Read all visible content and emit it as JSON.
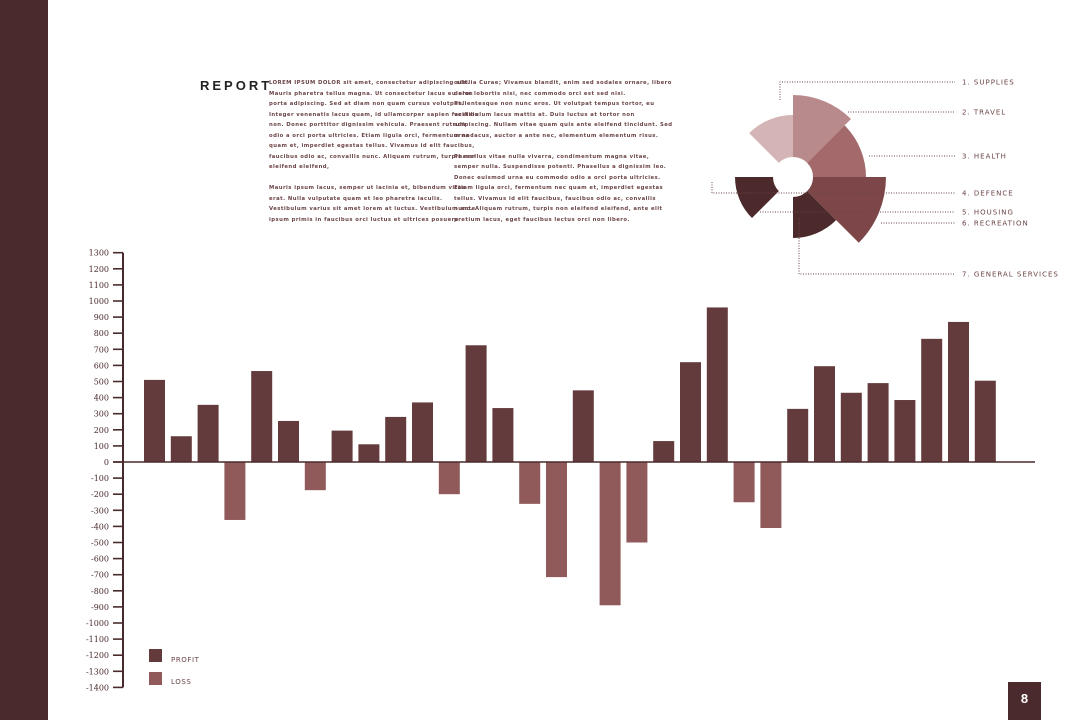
{
  "title": "REPORT",
  "page_number": "8",
  "body_text": {
    "column1": [
      [
        "LOREM IPSUM DOLOR sit amet, consectetur adipiscing elit.",
        "Mauris pharetra tellus magna. Ut consectetur lacus eu eros",
        "porta adipiscing. Sed at diam non quam cursus volutpat.",
        "Integer venenatis lacus quam, id ullamcorper sapien facilisis",
        "non. Donec porttitor dignissim vehicula. Praesent rutrum",
        "odio a orci porta ultricies. Etiam ligula orci, fermentum nec",
        "quam et, imperdiet egestas tellus. Vivamus id elit faucibus,",
        "faucibus odio ac, convallis nunc. Aliquam rutrum, turpis non",
        "eleifend eleifend,"
      ],
      [
        "Mauris ipsum lacus, semper ut lacinia et, bibendum vitae",
        "erat. Nulla vulputate quam et leo pharetra iaculis.",
        "Vestibulum varius sit amet lorem at luctus. Vestibulum ante",
        "ipsum primis in faucibus orci luctus et ultrices posuere"
      ]
    ],
    "column2": [
      [
        "cubilia Curae; Vivamus blandit, enim sed sodales ornare, libero",
        "dolor lobortis nisi, nec commodo orci est sed nisi.",
        "Pellentesque non nunc eros. Ut volutpat tempus tortor, eu",
        "vestibulum lacus mattis at. Duis luctus at tortor non",
        "adipiscing. Nullam vitae quam quis ante eleifend tincidunt. Sed",
        "urna lacus, auctor a ante nec, elementum elementum risus."
      ],
      [
        "Phasellus vitae nulla viverra, condimentum magna vitae,",
        "semper nulla. Suspendisse potenti. Phasellus a dignissim leo.",
        "Donec euismod urna eu commodo odio a orci porta ultricies.",
        "Etiam ligula orci, fermentum nec quam et, imperdiet egestas",
        "tellus. Vivamus id elit faucibus, faucibus odio ac, convallis",
        "nunc. Aliquam rutrum, turpis non eleifend eleifend, ante elit",
        "pretium lacus, eget faucibus lectus orci non libero."
      ]
    ]
  },
  "colors": {
    "sidebar": "#4a2a2c",
    "profit": "#633b3d",
    "loss": "#905a5b",
    "axis": "#4a2a2c"
  },
  "chart_data": [
    {
      "type": "polar-area",
      "categories": [
        "1. SUPPLIES",
        "2. TRAVEL",
        "3. HEALTH",
        "4. DEFENCE",
        "5. HOUSING",
        "6. RECREATION",
        "7. GENERAL SERVICES"
      ],
      "values": [
        42,
        62,
        53,
        38,
        0,
        73,
        41
      ],
      "colors": [
        "#d4b4b5",
        "#b98a8b",
        "#a46a6b",
        "#4c2a2c",
        "#5a3436",
        "#7d4749",
        "#4c2a2c"
      ]
    },
    {
      "type": "bar",
      "ylim": [
        -1400,
        1300
      ],
      "yticks": [
        1300,
        1200,
        1100,
        1000,
        900,
        800,
        700,
        600,
        500,
        400,
        300,
        200,
        100,
        0,
        -100,
        -200,
        -300,
        -400,
        -500,
        -600,
        -700,
        -800,
        -900,
        -1000,
        -1100,
        -1200,
        -1300,
        -1400
      ],
      "legend": [
        {
          "name": "PROFIT",
          "color": "#633b3d"
        },
        {
          "name": "LOSS",
          "color": "#905a5b"
        }
      ],
      "legend_position": "bottom-left",
      "values": [
        510,
        160,
        355,
        -360,
        565,
        255,
        -175,
        195,
        110,
        280,
        370,
        -200,
        725,
        335,
        -260,
        -715,
        445,
        -890,
        -500,
        130,
        620,
        960,
        -250,
        -410,
        330,
        595,
        430,
        490,
        385,
        765,
        870,
        505
      ]
    }
  ]
}
